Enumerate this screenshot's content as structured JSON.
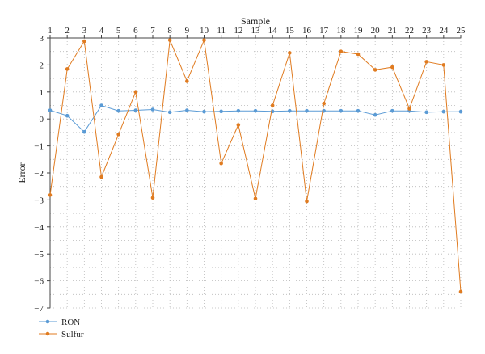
{
  "chart_data": {
    "type": "line",
    "xlabel": "Sample",
    "ylabel": "Error",
    "x_axis_position": "top",
    "categories": [
      "1",
      "2",
      "3",
      "4",
      "5",
      "6",
      "7",
      "8",
      "9",
      "10",
      "11",
      "12",
      "13",
      "14",
      "15",
      "16",
      "17",
      "18",
      "19",
      "20",
      "21",
      "22",
      "23",
      "24",
      "25"
    ],
    "y_ticks": [
      "3",
      "2",
      "1",
      "0",
      "−1",
      "−2",
      "−3",
      "−4",
      "−5",
      "−6",
      "−7"
    ],
    "ylim": [
      -7,
      3
    ],
    "grid": true,
    "legend_position": "bottom-left",
    "series": [
      {
        "name": "RON",
        "color": "#5b9bd5",
        "values": [
          0.32,
          0.12,
          -0.48,
          0.5,
          0.3,
          0.32,
          0.35,
          0.25,
          0.32,
          0.27,
          0.28,
          0.3,
          0.3,
          0.28,
          0.3,
          0.3,
          0.3,
          0.3,
          0.3,
          0.15,
          0.3,
          0.3,
          0.25,
          0.27,
          0.27
        ]
      },
      {
        "name": "Sulfur",
        "color": "#e07b20",
        "values": [
          -2.82,
          1.85,
          2.88,
          -2.15,
          -0.57,
          1.0,
          -2.92,
          2.92,
          1.4,
          2.92,
          -1.65,
          -0.22,
          -2.95,
          0.5,
          2.45,
          -3.05,
          0.57,
          2.5,
          2.4,
          1.82,
          1.92,
          0.38,
          2.12,
          2.0,
          -6.4
        ]
      }
    ]
  }
}
